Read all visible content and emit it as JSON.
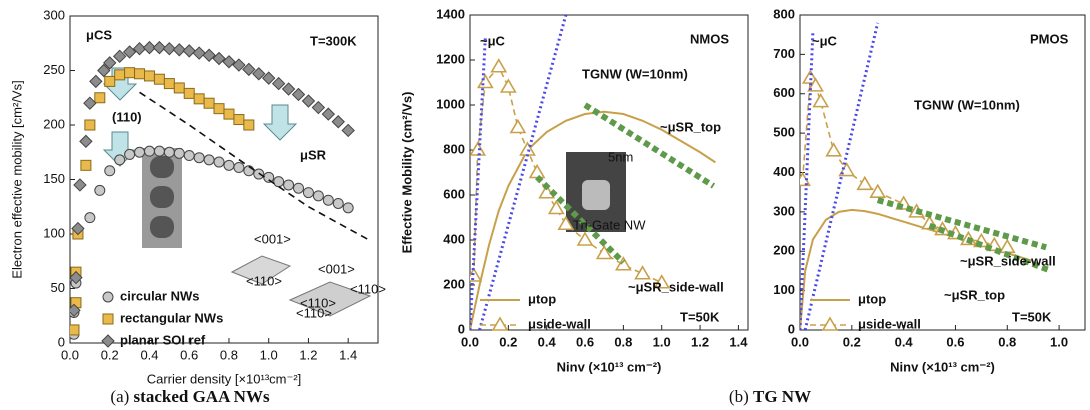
{
  "chart_data": [
    {
      "type": "scatter",
      "xlabel": "Carrier density [×10¹³cm⁻²]",
      "ylabel": "Electron effective mobility [cm²/Vs]",
      "xlim": [
        0,
        1.55
      ],
      "ylim": [
        0,
        300
      ],
      "xticks": [
        {
          "value": 0,
          "label": "0.0"
        },
        {
          "value": 0.2,
          "label": "0.2"
        },
        {
          "value": 0.4,
          "label": "0.4"
        },
        {
          "value": 0.6,
          "label": "0.6"
        },
        {
          "value": 0.8,
          "label": "0.8"
        },
        {
          "value": 1.0,
          "label": "1.0"
        },
        {
          "value": 1.2,
          "label": "1.2"
        },
        {
          "value": 1.4,
          "label": "1.4"
        }
      ],
      "yticks": [
        0,
        50,
        100,
        150,
        200,
        250,
        300
      ],
      "annotations": [
        {
          "text": "μCS",
          "color": "#111"
        },
        {
          "text": "T=300K",
          "color": "#111"
        },
        {
          "text": "(110)",
          "color": "#111"
        },
        {
          "text": "μSR",
          "color": "#111"
        },
        {
          "text": "<001>",
          "color": "#111"
        },
        {
          "text": "<110>",
          "color": "#111"
        },
        {
          "text": "<001>",
          "color": "#111"
        },
        {
          "text": "<110>",
          "color": "#111"
        },
        {
          "text": "<110>",
          "color": "#111"
        },
        {
          "text": "<110>",
          "color": "#111"
        }
      ],
      "series": [
        {
          "name": "circular NWs",
          "color": "#c8c8c8",
          "marker": "circle",
          "style": "marker",
          "x": [
            0.02,
            0.02,
            0.03,
            0.1,
            0.15,
            0.2,
            0.25,
            0.3,
            0.35,
            0.4,
            0.45,
            0.5,
            0.55,
            0.6,
            0.65,
            0.7,
            0.75,
            0.8,
            0.85,
            0.9,
            0.95,
            1.0,
            1.05,
            1.1,
            1.15,
            1.2,
            1.25,
            1.3,
            1.35,
            1.4
          ],
          "values": [
            8,
            28,
            55,
            115,
            140,
            158,
            168,
            173,
            175,
            176,
            176,
            175,
            174,
            172,
            170,
            168,
            166,
            163,
            161,
            158,
            155,
            152,
            148,
            145,
            142,
            138,
            135,
            131,
            128,
            124
          ]
        },
        {
          "name": "rectangular NWs",
          "color": "#e9b94c",
          "marker": "square",
          "style": "marker",
          "x": [
            0.02,
            0.03,
            0.03,
            0.04,
            0.08,
            0.1,
            0.15,
            0.2,
            0.25,
            0.3,
            0.35,
            0.4,
            0.45,
            0.5,
            0.55,
            0.6,
            0.65,
            0.7,
            0.75,
            0.8,
            0.85,
            0.9
          ],
          "values": [
            12,
            37,
            65,
            100,
            163,
            200,
            225,
            240,
            246,
            248,
            247,
            245,
            242,
            238,
            234,
            229,
            224,
            220,
            215,
            210,
            205,
            200
          ]
        },
        {
          "name": "planar SOI ref",
          "color": "#8c8c8c",
          "marker": "diamond",
          "style": "marker",
          "x": [
            0.02,
            0.03,
            0.04,
            0.05,
            0.08,
            0.1,
            0.13,
            0.17,
            0.2,
            0.25,
            0.3,
            0.35,
            0.4,
            0.45,
            0.5,
            0.55,
            0.6,
            0.65,
            0.7,
            0.75,
            0.8,
            0.85,
            0.9,
            0.95,
            1.0,
            1.05,
            1.1,
            1.15,
            1.2,
            1.25,
            1.3,
            1.35,
            1.4
          ],
          "values": [
            30,
            60,
            105,
            145,
            185,
            220,
            240,
            250,
            257,
            263,
            267,
            270,
            271,
            271,
            270,
            269,
            268,
            266,
            264,
            261,
            258,
            255,
            251,
            247,
            243,
            238,
            233,
            228,
            222,
            216,
            210,
            203,
            195
          ]
        },
        {
          "color": "#111111",
          "style": "dashed",
          "x": [
            0.35,
            0.6,
            0.9,
            1.2,
            1.5
          ],
          "values": [
            230,
            200,
            162,
            125,
            95
          ]
        }
      ]
    },
    {
      "type": "line",
      "xlabel": "Ninv (×10¹³ cm⁻²)",
      "ylabel": "Effective Mobility (cm²/Vs)",
      "xlim": [
        0,
        1.45
      ],
      "ylim": [
        0,
        1400
      ],
      "xticks": [
        {
          "value": 0,
          "label": "0.0"
        },
        {
          "value": 0.2,
          "label": "0.2"
        },
        {
          "value": 0.4,
          "label": "0.4"
        },
        {
          "value": 0.6,
          "label": "0.6"
        },
        {
          "value": 0.8,
          "label": "0.8"
        },
        {
          "value": 1.0,
          "label": "1.0"
        },
        {
          "value": 1.2,
          "label": "1.2"
        },
        {
          "value": 1.4,
          "label": "1.4"
        }
      ],
      "yticks": [
        0,
        200,
        400,
        600,
        800,
        1000,
        1200,
        1400
      ],
      "annotations": [
        {
          "text": "NMOS",
          "color": "#111"
        },
        {
          "text": "TGNW (W=10nm)",
          "color": "#111"
        },
        {
          "text": "~μC",
          "color": "#2a2ad8"
        },
        {
          "text": "~μSR_top",
          "color": "#2e8b2e"
        },
        {
          "text": "~μSR_side-wall",
          "color": "#2e8b2e"
        },
        {
          "text": "T=50K",
          "color": "#111"
        },
        {
          "text": "Tri-Gate NW",
          "color": "#111"
        },
        {
          "text": "5nm",
          "color": "#eee"
        }
      ],
      "series": [
        {
          "name": "μtop",
          "color": "#c9a04a",
          "style": "line",
          "x": [
            0,
            0.05,
            0.1,
            0.15,
            0.2,
            0.3,
            0.4,
            0.5,
            0.6,
            0.7,
            0.8,
            0.9,
            1.0,
            1.1,
            1.2,
            1.28
          ],
          "values": [
            0,
            200,
            380,
            530,
            640,
            800,
            880,
            930,
            960,
            970,
            960,
            930,
            890,
            840,
            790,
            745
          ]
        },
        {
          "name": "μside-wall",
          "color": "#c9a04a",
          "marker": "triangle",
          "style": "dashed-marker",
          "x": [
            0.02,
            0.04,
            0.08,
            0.15,
            0.2,
            0.25,
            0.3,
            0.35,
            0.4,
            0.45,
            0.5,
            0.6,
            0.7,
            0.8,
            0.9,
            1.0
          ],
          "values": [
            240,
            800,
            1100,
            1170,
            1080,
            900,
            800,
            700,
            610,
            540,
            470,
            400,
            340,
            290,
            250,
            210
          ]
        },
        {
          "color": "#4a4ae8",
          "style": "dotted",
          "x": [
            0,
            0.08
          ],
          "values": [
            0,
            1300
          ]
        },
        {
          "color": "#4a4ae8",
          "style": "dotted",
          "x": [
            0.05,
            0.5
          ],
          "values": [
            0,
            1400
          ]
        },
        {
          "color": "#5f9a4a",
          "style": "thick-dotted",
          "x": [
            0.6,
            1.27
          ],
          "values": [
            1000,
            640
          ]
        },
        {
          "color": "#5f9a4a",
          "style": "thick-dotted",
          "x": [
            0.35,
            0.8
          ],
          "values": [
            680,
            300
          ]
        }
      ]
    },
    {
      "type": "line",
      "xlabel": "Ninv (×10¹³ cm⁻²)",
      "xlim": [
        0,
        1.1
      ],
      "ylim": [
        0,
        800
      ],
      "xticks": [
        {
          "value": 0,
          "label": "0.0"
        },
        {
          "value": 0.2,
          "label": "0.2"
        },
        {
          "value": 0.4,
          "label": "0.4"
        },
        {
          "value": 0.6,
          "label": "0.6"
        },
        {
          "value": 0.8,
          "label": "0.8"
        },
        {
          "value": 1.0,
          "label": "1.0"
        }
      ],
      "yticks": [
        0,
        100,
        200,
        300,
        400,
        500,
        600,
        700,
        800
      ],
      "annotations": [
        {
          "text": "PMOS",
          "color": "#111"
        },
        {
          "text": "TGNW (W=10nm)",
          "color": "#111"
        },
        {
          "text": "~μC",
          "color": "#2a2ad8"
        },
        {
          "text": "~μSR_side-wall",
          "color": "#2e8b2e"
        },
        {
          "text": "~μSR_top",
          "color": "#2e8b2e"
        },
        {
          "text": "T=50K",
          "color": "#111"
        }
      ],
      "series": [
        {
          "name": "μtop",
          "color": "#c9a04a",
          "style": "line",
          "x": [
            0,
            0.02,
            0.05,
            0.1,
            0.15,
            0.2,
            0.25,
            0.3,
            0.4,
            0.5,
            0.6,
            0.7,
            0.8,
            0.9
          ],
          "values": [
            0,
            150,
            230,
            280,
            300,
            305,
            302,
            295,
            275,
            255,
            235,
            215,
            195,
            175
          ]
        },
        {
          "name": "μside-wall",
          "color": "#c9a04a",
          "marker": "triangle",
          "style": "dashed-marker",
          "x": [
            0.01,
            0.04,
            0.06,
            0.08,
            0.13,
            0.18,
            0.25,
            0.3,
            0.4,
            0.45,
            0.5,
            0.55,
            0.6,
            0.65,
            0.7,
            0.75,
            0.8
          ],
          "values": [
            380,
            640,
            620,
            580,
            455,
            405,
            370,
            350,
            320,
            300,
            270,
            255,
            245,
            230,
            225,
            215,
            210
          ]
        },
        {
          "color": "#4a4ae8",
          "style": "dotted",
          "x": [
            0,
            0.05
          ],
          "values": [
            0,
            760
          ]
        },
        {
          "color": "#4a4ae8",
          "style": "dotted",
          "x": [
            0.02,
            0.3
          ],
          "values": [
            0,
            780
          ]
        },
        {
          "color": "#5f9a4a",
          "style": "thick-dotted",
          "x": [
            0.3,
            0.95
          ],
          "values": [
            330,
            210
          ]
        },
        {
          "color": "#5f9a4a",
          "style": "thick-dotted",
          "x": [
            0.5,
            0.97
          ],
          "values": [
            265,
            150
          ]
        }
      ]
    }
  ],
  "captions": [
    {
      "label": "(a)",
      "text": "stacked GAA NWs"
    },
    {
      "label": "(b)",
      "text": "TG NW"
    }
  ]
}
